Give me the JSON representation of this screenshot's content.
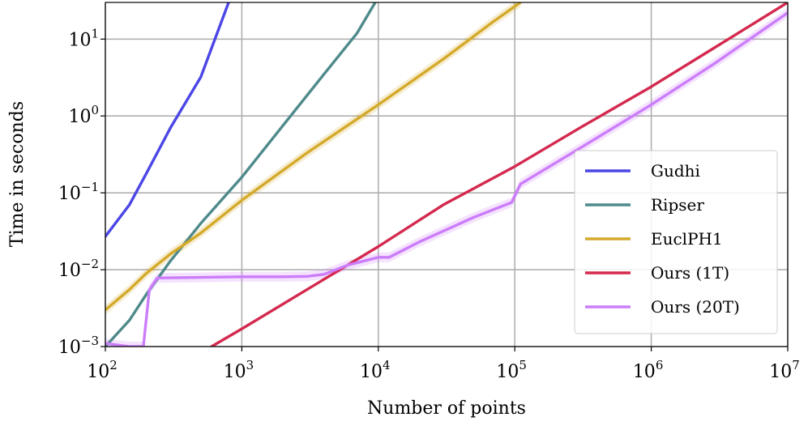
{
  "chart_data": {
    "type": "line",
    "xlabel": "Number of points",
    "ylabel": "Time in seconds",
    "xscale": "log",
    "yscale": "log",
    "xlim": [
      100,
      10000000
    ],
    "ylim": [
      0.001,
      30
    ],
    "grid": true,
    "legend_position": "lower-right",
    "x_ticks": [
      {
        "value": 100,
        "base": "10",
        "exp": "2"
      },
      {
        "value": 1000,
        "base": "10",
        "exp": "3"
      },
      {
        "value": 10000,
        "base": "10",
        "exp": "4"
      },
      {
        "value": 100000,
        "base": "10",
        "exp": "5"
      },
      {
        "value": 1000000,
        "base": "10",
        "exp": "6"
      },
      {
        "value": 10000000,
        "base": "10",
        "exp": "7"
      }
    ],
    "y_ticks": [
      {
        "value": 0.001,
        "base": "10",
        "exp": "−3"
      },
      {
        "value": 0.01,
        "base": "10",
        "exp": "−2"
      },
      {
        "value": 0.1,
        "base": "10",
        "exp": "−1"
      },
      {
        "value": 1,
        "base": "10",
        "exp": "0"
      },
      {
        "value": 10,
        "base": "10",
        "exp": "1"
      }
    ],
    "series": [
      {
        "name": "Gudhi",
        "color": "#4b46e6",
        "band": false,
        "points": [
          [
            100,
            0.027
          ],
          [
            150,
            0.07
          ],
          [
            200,
            0.18
          ],
          [
            300,
            0.7
          ],
          [
            500,
            3.2
          ],
          [
            800,
            30
          ]
        ]
      },
      {
        "name": "Ripser",
        "color": "#4f8a8b",
        "band": false,
        "points": [
          [
            100,
            0.001
          ],
          [
            150,
            0.0022
          ],
          [
            200,
            0.0048
          ],
          [
            300,
            0.013
          ],
          [
            500,
            0.04
          ],
          [
            1000,
            0.16
          ],
          [
            2000,
            0.75
          ],
          [
            4000,
            3.5
          ],
          [
            7000,
            12
          ],
          [
            9500,
            30
          ]
        ]
      },
      {
        "name": "EuclPH1",
        "color": "#d4aa2a",
        "band": true,
        "points": [
          [
            100,
            0.003
          ],
          [
            150,
            0.0055
          ],
          [
            200,
            0.009
          ],
          [
            300,
            0.016
          ],
          [
            500,
            0.03
          ],
          [
            1000,
            0.08
          ],
          [
            3000,
            0.33
          ],
          [
            10000,
            1.4
          ],
          [
            30000,
            5.5
          ],
          [
            70000,
            17
          ],
          [
            110000,
            30
          ]
        ]
      },
      {
        "name": "Ours (1T)",
        "color": "#d4294e",
        "band": false,
        "points": [
          [
            600,
            0.001
          ],
          [
            1000,
            0.0017
          ],
          [
            3000,
            0.0055
          ],
          [
            10000,
            0.02
          ],
          [
            30000,
            0.07
          ],
          [
            100000,
            0.22
          ],
          [
            300000,
            0.7
          ],
          [
            1000000,
            2.4
          ],
          [
            3000000,
            8
          ],
          [
            10000000,
            30
          ]
        ]
      },
      {
        "name": "Ours (20T)",
        "color": "#cc7dfa",
        "band": true,
        "points": [
          [
            100,
            0.0011
          ],
          [
            150,
            0.001
          ],
          [
            190,
            0.001
          ],
          [
            210,
            0.0055
          ],
          [
            240,
            0.0078
          ],
          [
            400,
            0.0079
          ],
          [
            1000,
            0.0081
          ],
          [
            2000,
            0.0081
          ],
          [
            3000,
            0.0082
          ],
          [
            4000,
            0.0087
          ],
          [
            6000,
            0.0115
          ],
          [
            10000,
            0.0145
          ],
          [
            12000,
            0.0145
          ],
          [
            20000,
            0.023
          ],
          [
            50000,
            0.048
          ],
          [
            95000,
            0.075
          ],
          [
            110000,
            0.13
          ],
          [
            300000,
            0.38
          ],
          [
            1000000,
            1.4
          ],
          [
            3000000,
            5
          ],
          [
            10000000,
            22
          ]
        ]
      }
    ]
  }
}
